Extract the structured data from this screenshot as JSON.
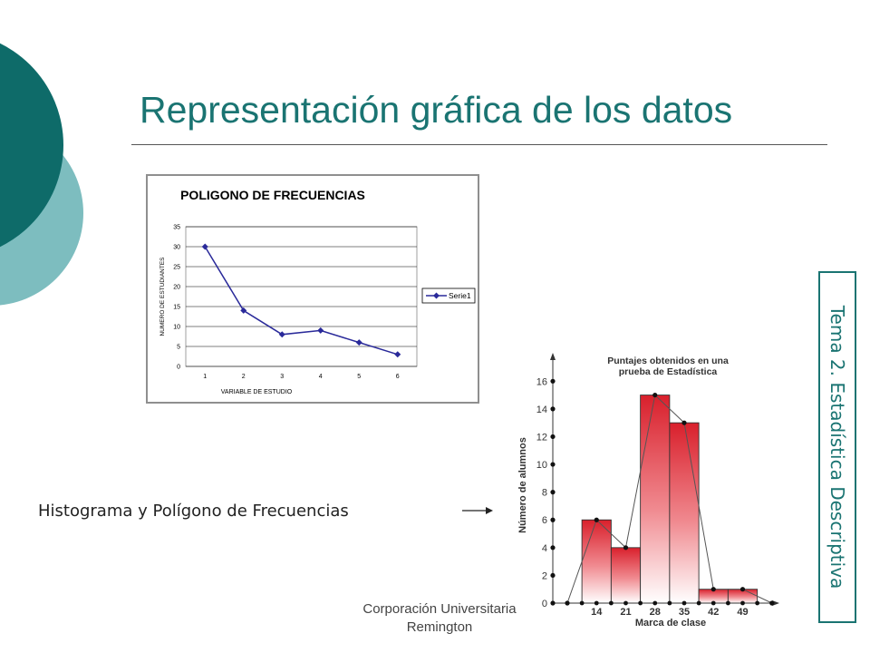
{
  "slide": {
    "title": "Representación gráfica de los datos",
    "side_label": "Tema 2. Estadística Descriptiva",
    "histogram_caption": "Histograma y Polígono de Frecuencias",
    "footer_line1": "Corporación Universitaria",
    "footer_line2": "Remington",
    "colors": {
      "title": "#1a7472",
      "circle_dark": "#0e6b69",
      "circle_light": "#7dbdbf",
      "bar_red": "#d9202c"
    }
  },
  "chart_data": [
    {
      "type": "line",
      "title": "POLIGONO DE FRECUENCIAS",
      "xlabel": "VARIABLE DE ESTUDIO",
      "ylabel": "NUMERO DE ESTUDIANTES",
      "categories": [
        "1",
        "2",
        "3",
        "4",
        "5",
        "6"
      ],
      "yticks": [
        "0",
        "5",
        "10",
        "15",
        "20",
        "25",
        "30",
        "35"
      ],
      "ylim": [
        0,
        35
      ],
      "grid": true,
      "legend": "right",
      "series": [
        {
          "name": "Serie1",
          "values": [
            30,
            14,
            8,
            9,
            6,
            3
          ]
        }
      ]
    },
    {
      "type": "bar",
      "title_line1": "Puntajes obtenidos en una",
      "title_line2": "prueba de Estadística",
      "xlabel": "Marca de clase",
      "ylabel": "Número de alumnos",
      "categories": [
        "14",
        "21",
        "28",
        "35",
        "42",
        "49"
      ],
      "class_centers": [
        14,
        21,
        28,
        35,
        42,
        49
      ],
      "values": [
        6,
        4,
        15,
        13,
        1,
        1
      ],
      "yticks": [
        "0",
        "2",
        "4",
        "6",
        "8",
        "10",
        "12",
        "14",
        "16"
      ],
      "ylim": [
        0,
        17
      ],
      "polygon_x": [
        7,
        14,
        21,
        28,
        35,
        42,
        49,
        56
      ],
      "polygon_y": [
        0,
        6,
        4,
        15,
        13,
        1,
        1,
        0
      ]
    }
  ]
}
